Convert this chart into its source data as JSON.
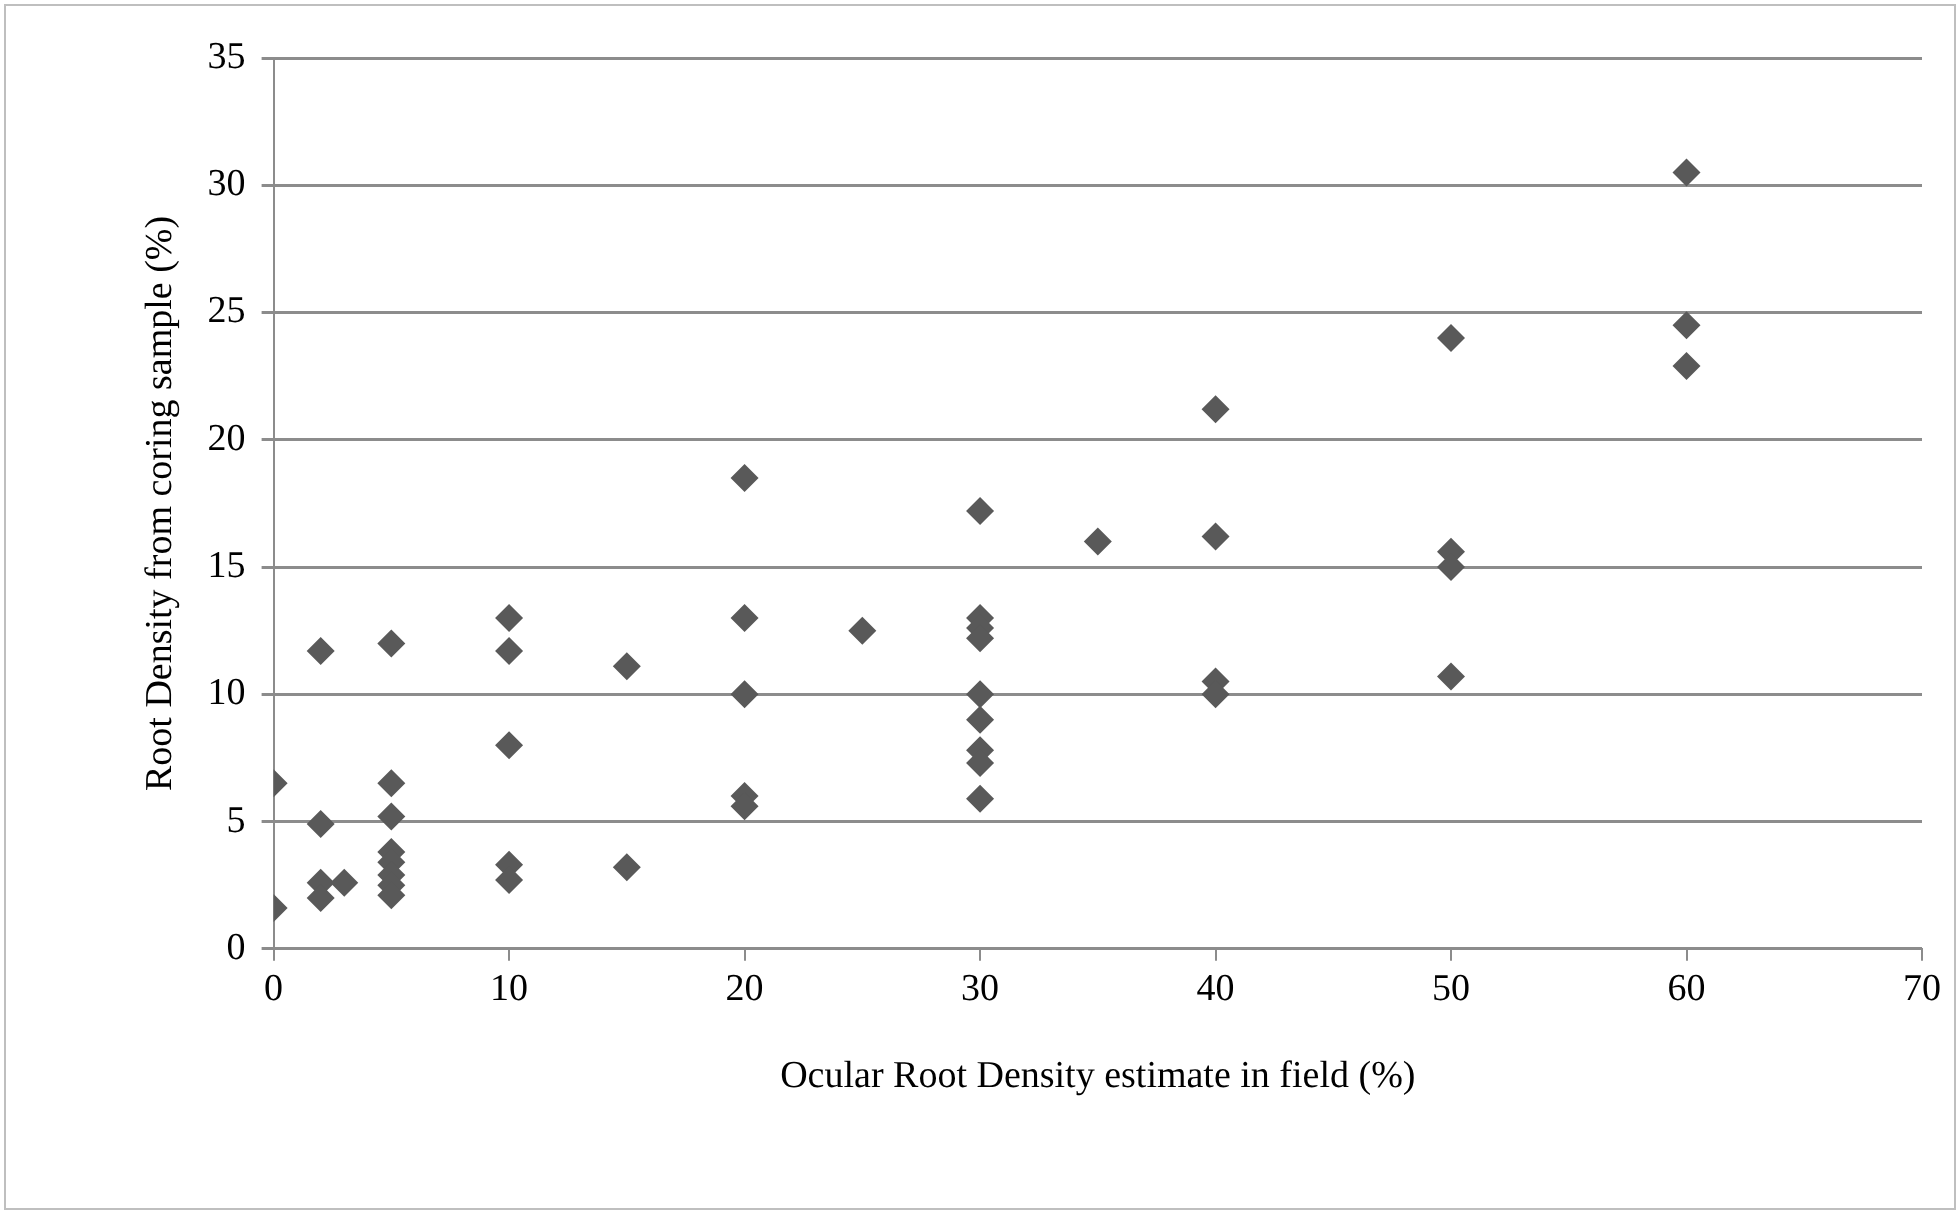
{
  "chart_data": {
    "type": "scatter",
    "xlabel": "Ocular Root Density estimate in field (%)",
    "ylabel": "Root Density from coring sample (%)",
    "x": [
      0,
      0,
      2,
      2,
      2,
      2,
      3,
      5,
      5,
      5,
      5,
      5,
      5,
      5,
      5,
      10,
      10,
      10,
      10,
      10,
      15,
      15,
      20,
      20,
      20,
      20,
      20,
      25,
      30,
      30,
      30,
      30,
      30,
      30,
      30,
      30,
      30,
      35,
      40,
      40,
      40,
      40,
      50,
      50,
      50,
      50,
      60,
      60,
      60
    ],
    "series": [
      {
        "color": "#595959",
        "values": [
          6.5,
          1.6,
          11.7,
          4.9,
          2.6,
          2.0,
          2.6,
          12.0,
          6.5,
          5.2,
          3.8,
          3.4,
          2.9,
          2.5,
          2.1,
          13.0,
          11.7,
          8.0,
          3.3,
          2.7,
          11.1,
          3.2,
          18.5,
          13.0,
          10.0,
          6.0,
          5.6,
          12.5,
          17.2,
          13.0,
          12.6,
          12.2,
          10.0,
          9.0,
          7.8,
          7.3,
          5.9,
          16.0,
          21.2,
          16.2,
          10.5,
          10.0,
          24.0,
          15.6,
          15.0,
          10.7,
          30.5,
          24.5,
          22.9
        ]
      }
    ],
    "xlim": [
      0,
      70
    ],
    "xticks": [
      0,
      10,
      20,
      30,
      40,
      50,
      60,
      70
    ],
    "ylim": [
      0,
      35
    ],
    "yticks": [
      0,
      5,
      10,
      15,
      20,
      25,
      30,
      35
    ],
    "grid": "y",
    "legend": false,
    "marker": "diamond"
  }
}
